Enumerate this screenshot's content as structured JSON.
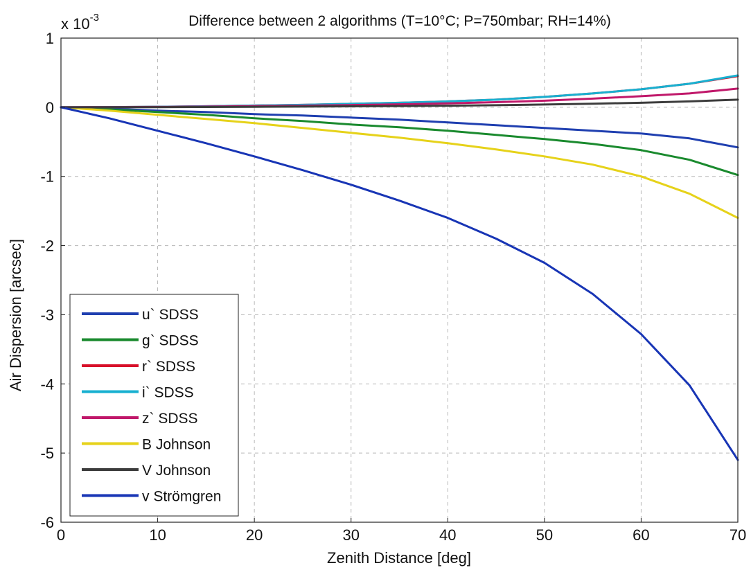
{
  "chart_data": {
    "type": "line",
    "title": "Difference between 2 algorithms (T=10°C; P=750mbar; RH=14%)",
    "xlabel": "Zenith Distance [deg]",
    "ylabel": "Air Dispersion [arcsec]",
    "y_multiplier": "x 10",
    "y_multiplier_exp": "-3",
    "xlim": [
      0,
      70
    ],
    "ylim": [
      -6,
      1
    ],
    "x_ticks": [
      "0",
      "10",
      "20",
      "30",
      "40",
      "50",
      "60",
      "70"
    ],
    "y_ticks": [
      "1",
      "0",
      "-1",
      "-2",
      "-3",
      "-4",
      "-5",
      "-6"
    ],
    "x_tick_values": [
      0,
      10,
      20,
      30,
      40,
      50,
      60,
      70
    ],
    "y_tick_values": [
      1,
      0,
      -1,
      -2,
      -3,
      -4,
      -5,
      -6
    ],
    "grid": true,
    "legend_position": "bottom-left",
    "x": [
      0,
      5,
      10,
      15,
      20,
      25,
      30,
      35,
      40,
      45,
      50,
      55,
      60,
      65,
      70
    ],
    "series": [
      {
        "name": "u` SDSS",
        "color": "#1f3fb0",
        "values": [
          0,
          -0.02,
          -0.05,
          -0.07,
          -0.1,
          -0.12,
          -0.15,
          -0.18,
          -0.22,
          -0.26,
          -0.3,
          -0.34,
          -0.38,
          -0.45,
          -0.58
        ]
      },
      {
        "name": "g` SDSS",
        "color": "#1a8a2e",
        "values": [
          0,
          -0.03,
          -0.07,
          -0.11,
          -0.16,
          -0.2,
          -0.25,
          -0.29,
          -0.34,
          -0.4,
          -0.46,
          -0.53,
          -0.62,
          -0.76,
          -0.98
        ]
      },
      {
        "name": "r` SDSS",
        "color": "#d8102a",
        "values": [
          0,
          0.003,
          0.008,
          0.015,
          0.025,
          0.035,
          0.05,
          0.065,
          0.085,
          0.11,
          0.15,
          0.2,
          0.26,
          0.34,
          0.45
        ]
      },
      {
        "name": "i` SDSS",
        "color": "#18b0d0",
        "values": [
          0,
          0.003,
          0.008,
          0.015,
          0.025,
          0.035,
          0.05,
          0.065,
          0.085,
          0.11,
          0.15,
          0.2,
          0.26,
          0.34,
          0.46
        ]
      },
      {
        "name": "z` SDSS",
        "color": "#c0186a",
        "values": [
          0,
          0.002,
          0.005,
          0.01,
          0.016,
          0.023,
          0.032,
          0.043,
          0.057,
          0.074,
          0.095,
          0.125,
          0.16,
          0.2,
          0.27
        ]
      },
      {
        "name": "B Johnson",
        "color": "#e6d21a",
        "values": [
          0,
          -0.05,
          -0.11,
          -0.17,
          -0.23,
          -0.3,
          -0.37,
          -0.44,
          -0.52,
          -0.61,
          -0.71,
          -0.83,
          -1.0,
          -1.25,
          -1.6
        ]
      },
      {
        "name": "V Johnson",
        "color": "#3c3c3c",
        "values": [
          0,
          0.0,
          0.002,
          0.004,
          0.007,
          0.01,
          0.014,
          0.018,
          0.023,
          0.03,
          0.04,
          0.052,
          0.065,
          0.085,
          0.11
        ]
      },
      {
        "name": "v Strömgren",
        "color": "#1835b5",
        "values": [
          0,
          -0.16,
          -0.34,
          -0.52,
          -0.71,
          -0.91,
          -1.12,
          -1.35,
          -1.6,
          -1.9,
          -2.25,
          -2.7,
          -3.28,
          -4.02,
          -5.1
        ]
      }
    ]
  }
}
